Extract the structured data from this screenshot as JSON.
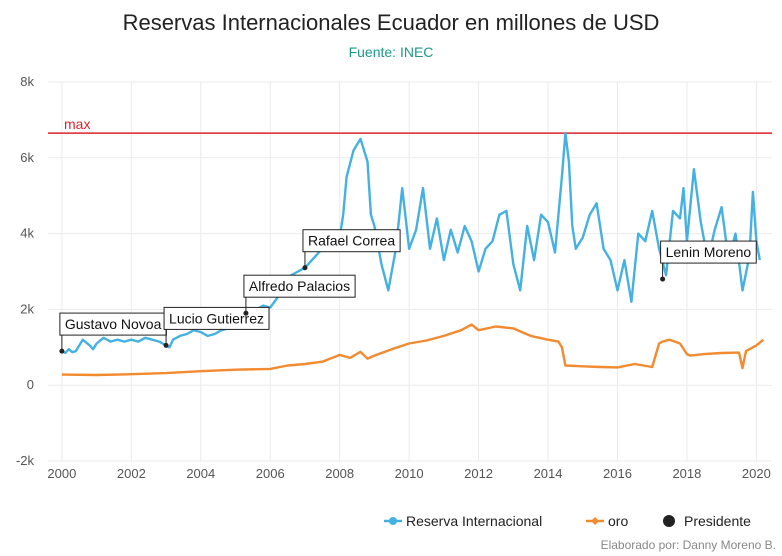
{
  "colors": {
    "reserva": "#45b1e0",
    "oro": "#f28a30",
    "presidente": "#222222",
    "max_line": "#d9232d",
    "subtitle": "#1a9a8a",
    "grid": "#ebebeb"
  },
  "legend": {
    "reserva": "Reserva Internacional",
    "oro": "oro",
    "presidente": "Presidente"
  },
  "credit": "Elaborado por: Danny Moreno B.",
  "chart_data": {
    "type": "line",
    "title": "Reservas Internacionales Ecuador en millones de USD",
    "subtitle": "Fuente: INEC",
    "xlabel": "",
    "ylabel": "",
    "xlim": [
      1999.6,
      2020.45
    ],
    "ylim": [
      -2000,
      8000
    ],
    "x_ticks": [
      2000,
      2002,
      2004,
      2006,
      2008,
      2010,
      2012,
      2014,
      2016,
      2018,
      2020
    ],
    "y_ticks": [
      {
        "value": -2000,
        "label": "-2k"
      },
      {
        "value": 0,
        "label": "0"
      },
      {
        "value": 2000,
        "label": "2k"
      },
      {
        "value": 4000,
        "label": "4k"
      },
      {
        "value": 6000,
        "label": "6k"
      },
      {
        "value": 8000,
        "label": "8k"
      }
    ],
    "grid": true,
    "legend_position": "bottom-right",
    "reference_line": {
      "name": "max",
      "value": 6650
    },
    "series": [
      {
        "name": "Reserva Internacional",
        "x": [
          2000.0,
          2000.1,
          2000.2,
          2000.3,
          2000.4,
          2000.6,
          2000.8,
          2000.9,
          2001.0,
          2001.2,
          2001.4,
          2001.6,
          2001.8,
          2002.0,
          2002.2,
          2002.4,
          2002.6,
          2002.8,
          2003.0,
          2003.1,
          2003.2,
          2003.4,
          2003.6,
          2003.8,
          2004.0,
          2004.2,
          2004.4,
          2004.6,
          2004.8,
          2005.0,
          2005.2,
          2005.4,
          2005.6,
          2005.8,
          2006.0,
          2006.2,
          2006.4,
          2006.6,
          2006.8,
          2007.0,
          2007.2,
          2007.4,
          2007.6,
          2007.8,
          2008.0,
          2008.1,
          2008.2,
          2008.4,
          2008.6,
          2008.8,
          2008.9,
          2009.0,
          2009.2,
          2009.4,
          2009.6,
          2009.7,
          2009.8,
          2009.9,
          2010.0,
          2010.2,
          2010.4,
          2010.6,
          2010.8,
          2011.0,
          2011.2,
          2011.4,
          2011.6,
          2011.8,
          2012.0,
          2012.2,
          2012.4,
          2012.6,
          2012.8,
          2013.0,
          2013.2,
          2013.4,
          2013.6,
          2013.8,
          2014.0,
          2014.2,
          2014.4,
          2014.5,
          2014.6,
          2014.7,
          2014.8,
          2015.0,
          2015.2,
          2015.4,
          2015.6,
          2015.8,
          2016.0,
          2016.2,
          2016.4,
          2016.6,
          2016.8,
          2017.0,
          2017.2,
          2017.4,
          2017.6,
          2017.8,
          2017.9,
          2018.0,
          2018.2,
          2018.4,
          2018.6,
          2018.8,
          2019.0,
          2019.2,
          2019.4,
          2019.6,
          2019.8,
          2019.9,
          2020.0,
          2020.1
        ],
        "values": [
          900,
          850,
          950,
          870,
          900,
          1200,
          1050,
          950,
          1100,
          1250,
          1150,
          1200,
          1150,
          1200,
          1150,
          1250,
          1200,
          1150,
          1050,
          1000,
          1200,
          1300,
          1350,
          1450,
          1400,
          1300,
          1350,
          1450,
          1500,
          1600,
          1800,
          1900,
          2000,
          2100,
          2050,
          2300,
          2700,
          2900,
          3000,
          3100,
          3300,
          3500,
          3700,
          3600,
          3900,
          4500,
          5500,
          6200,
          6500,
          5900,
          4500,
          4200,
          3200,
          2500,
          3500,
          4300,
          5200,
          4400,
          3600,
          4100,
          5200,
          3600,
          4400,
          3300,
          4100,
          3500,
          4200,
          3800,
          3000,
          3600,
          3800,
          4500,
          4600,
          3200,
          2500,
          4200,
          3300,
          4500,
          4300,
          3500,
          5500,
          6650,
          5900,
          4200,
          3600,
          3900,
          4500,
          4800,
          3600,
          3300,
          2500,
          3300,
          2200,
          4000,
          3800,
          4600,
          3600,
          2900,
          4600,
          4400,
          5200,
          3800,
          5700,
          4300,
          3300,
          4100,
          4700,
          3300,
          4000,
          2500,
          3400,
          5100,
          3800,
          3300
        ],
        "color": "#45b1e0"
      },
      {
        "name": "oro",
        "x": [
          2000.0,
          2001.0,
          2002.0,
          2003.0,
          2004.0,
          2005.0,
          2006.0,
          2006.5,
          2007.0,
          2007.5,
          2008.0,
          2008.3,
          2008.6,
          2008.8,
          2009.0,
          2009.5,
          2010.0,
          2010.5,
          2011.0,
          2011.5,
          2011.8,
          2012.0,
          2012.5,
          2013.0,
          2013.5,
          2014.0,
          2014.3,
          2014.4,
          2014.5,
          2015.0,
          2015.5,
          2016.0,
          2016.5,
          2017.0,
          2017.2,
          2017.3,
          2017.5,
          2017.8,
          2018.0,
          2018.1,
          2018.5,
          2019.0,
          2019.5,
          2019.6,
          2019.7,
          2020.0,
          2020.2
        ],
        "values": [
          280,
          270,
          290,
          320,
          370,
          410,
          430,
          520,
          560,
          620,
          800,
          720,
          880,
          700,
          780,
          950,
          1100,
          1180,
          1300,
          1450,
          1600,
          1450,
          1550,
          1500,
          1300,
          1200,
          1150,
          1000,
          520,
          500,
          480,
          470,
          560,
          480,
          1100,
          1150,
          1200,
          1100,
          820,
          780,
          820,
          850,
          860,
          450,
          900,
          1050,
          1200
        ],
        "color": "#f28a30"
      }
    ],
    "presidents": [
      {
        "name": "Gustavo Novoa",
        "x": 2000.0,
        "y": 900
      },
      {
        "name": "Lucio Gutierrez",
        "x": 2003.0,
        "y": 1050
      },
      {
        "name": "Alfredo Palacios",
        "x": 2005.3,
        "y": 1900
      },
      {
        "name": "Rafael Correa",
        "x": 2007.0,
        "y": 3100
      },
      {
        "name": "Lenin Moreno",
        "x": 2017.3,
        "y": 2800
      }
    ]
  }
}
